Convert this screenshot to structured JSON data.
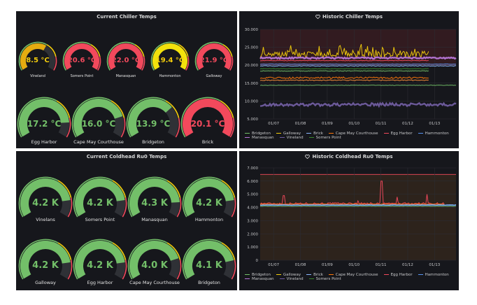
{
  "panels": {
    "current_chiller": {
      "title": "Current Chiller Temps",
      "row1": [
        {
          "value": "8.5 °C",
          "label": "Vineland",
          "fraction": 0.62,
          "color": "#e5ac10",
          "valcolor": "#f2cc0c"
        },
        {
          "value": "20.6 °C",
          "label": "Somers Point",
          "fraction": 1.0,
          "color": "#f2495c",
          "valcolor": "#f2495c"
        },
        {
          "value": "22.0 °C",
          "label": "Manasquan",
          "fraction": 1.0,
          "color": "#f2495c",
          "valcolor": "#f2495c"
        },
        {
          "value": "19.4 °C",
          "label": "Hammonton",
          "fraction": 1.0,
          "color": "#f2e20c",
          "valcolor": "#f2cc0c"
        },
        {
          "value": "21.9 °C",
          "label": "Galloway",
          "fraction": 1.0,
          "color": "#f2495c",
          "valcolor": "#f2495c"
        }
      ],
      "row2": [
        {
          "value": "17.2 °C",
          "label": "Egg Harbor",
          "fraction": 0.86,
          "color": "#73bf69",
          "valcolor": "#73bf69"
        },
        {
          "value": "16.0 °C",
          "label": "Cape May Courthouse",
          "fraction": 0.8,
          "color": "#73bf69",
          "valcolor": "#73bf69"
        },
        {
          "value": "13.9 °C",
          "label": "Bridgeton",
          "fraction": 0.7,
          "color": "#73bf69",
          "valcolor": "#73bf69"
        },
        {
          "value": "20.1 °C",
          "label": "Brick",
          "fraction": 1.0,
          "color": "#f2495c",
          "valcolor": "#f2495c"
        }
      ]
    },
    "historic_chiller": {
      "title": "Historic Chiller Temps",
      "legend": [
        {
          "name": "Bridgeton",
          "color": "#73bf69"
        },
        {
          "name": "Galloway",
          "color": "#f2cc0c"
        },
        {
          "name": "Brick",
          "color": "#8ab8ff"
        },
        {
          "name": "Cape May Courthouse",
          "color": "#ff780a"
        },
        {
          "name": "Egg Harbor",
          "color": "#f2495c"
        },
        {
          "name": "Hammonton",
          "color": "#5794f2"
        },
        {
          "name": "Manasquan",
          "color": "#b877d9"
        },
        {
          "name": "Vineland",
          "color": "#705da0"
        },
        {
          "name": "Somers Point",
          "color": "#37872d"
        }
      ]
    },
    "current_coldhead": {
      "title": "Current Coldhead Ru0 Temps",
      "row1": [
        {
          "value": "4.2 K",
          "label": "Vinelans",
          "fraction": 0.84
        },
        {
          "value": "4.2 K",
          "label": "Somers Point",
          "fraction": 0.84
        },
        {
          "value": "4.3 K",
          "label": "Manasquan",
          "fraction": 0.86
        },
        {
          "value": "4.2 K",
          "label": "Hammonton",
          "fraction": 0.84
        }
      ],
      "row2": [
        {
          "value": "4.2 K",
          "label": "Galloway",
          "fraction": 0.84
        },
        {
          "value": "4.2 K",
          "label": "Egg Harbor",
          "fraction": 0.84
        },
        {
          "value": "4.0 K",
          "label": "Cape May Courthouse",
          "fraction": 0.8
        },
        {
          "value": "4.1 K",
          "label": "Bridgeton",
          "fraction": 0.82
        }
      ],
      "color": "#73bf69"
    },
    "historic_coldhead": {
      "title": "Historic Coldhead Ru0 Temps",
      "legend": [
        {
          "name": "Bridgeton",
          "color": "#73bf69"
        },
        {
          "name": "Galloway",
          "color": "#f2cc0c"
        },
        {
          "name": "Brick",
          "color": "#8ab8ff"
        },
        {
          "name": "Cape May Courthouse",
          "color": "#ff780a"
        },
        {
          "name": "Egg Harbor",
          "color": "#f2495c"
        },
        {
          "name": "Hammonton",
          "color": "#5794f2"
        },
        {
          "name": "Manasquan",
          "color": "#b877d9"
        },
        {
          "name": "Vineland",
          "color": "#705da0"
        },
        {
          "name": "Somers Point",
          "color": "#37872d"
        }
      ]
    }
  },
  "heart_icon": "heart-icon",
  "chart_data": [
    {
      "type": "line",
      "title": "Historic Chiller Temps",
      "x": [
        "01/07",
        "01/08",
        "01/09",
        "01/10",
        "01/11",
        "01/12",
        "01/13"
      ],
      "ylim": [
        5,
        30
      ],
      "yticks": [
        "5.000",
        "10.000",
        "15.000",
        "20.000",
        "25.000",
        "30.000"
      ],
      "thresholds": [
        {
          "from": 20,
          "to": 30,
          "color": "#f2495c"
        }
      ],
      "series": [
        {
          "name": "Galloway",
          "level": 23.0,
          "noise": 1.3,
          "color": "#f2cc0c",
          "style": "spiky",
          "end": 0.86
        },
        {
          "name": "Manasquan",
          "level": 22.0,
          "noise": 0.3,
          "color": "#b877d9",
          "style": "band",
          "end": 1.0
        },
        {
          "name": "Egg Harbor",
          "level": 21.3,
          "noise": 0.3,
          "color": "#f2495c",
          "style": "smooth",
          "end": 0.86
        },
        {
          "name": "Hammonton",
          "level": 20.3,
          "noise": 0.2,
          "color": "#5794f2",
          "style": "smooth",
          "end": 1.0
        },
        {
          "name": "Brick",
          "level": 19.8,
          "noise": 0.3,
          "color": "#8ab8ff",
          "style": "smooth",
          "end": 1.0
        },
        {
          "name": "Somers Point",
          "level": 19.0,
          "noise": 0.3,
          "color": "#37872d",
          "style": "smooth",
          "end": 0.86
        },
        {
          "name": "Bridgeton",
          "level": 18.4,
          "noise": 0.3,
          "color": "#73bf69",
          "style": "smooth",
          "end": 0.86
        },
        {
          "name": "Cape May Courthouse",
          "level": 16.5,
          "noise": 0.8,
          "color": "#ff780a",
          "style": "smooth",
          "end": 0.86
        },
        {
          "name": "Cape May Courthouse",
          "level": 15.8,
          "noise": 0.4,
          "color": "#fa8f3c",
          "style": "smooth",
          "end": 0.86
        },
        {
          "name": "Bridgeton",
          "level": 14.4,
          "noise": 0.2,
          "color": "#73bf69",
          "style": "smooth",
          "end": 1.0
        },
        {
          "name": "Vineland",
          "level": 9.0,
          "noise": 0.6,
          "color": "#705da0",
          "style": "band",
          "end": 1.0
        }
      ]
    },
    {
      "type": "line",
      "title": "Historic Coldhead Ru0 Temps",
      "x": [
        "01/07",
        "01/08",
        "01/09",
        "01/10",
        "01/11",
        "01/12",
        "01/13"
      ],
      "ylim": [
        0,
        7
      ],
      "yticks": [
        "0",
        "1.000",
        "2.000",
        "3.000",
        "4.000",
        "5.000",
        "6.000",
        "7.000"
      ],
      "thresholds": [
        {
          "value": 6.5,
          "color": "#f2495c"
        }
      ],
      "series": [
        {
          "name": "Egg Harbor",
          "level": 4.3,
          "noise": 0.1,
          "color": "#f2495c",
          "style": "spikes",
          "spikes": [
            [
              0.12,
              4.9
            ],
            [
              0.5,
              4.5
            ],
            [
              0.62,
              6.0
            ],
            [
              0.7,
              4.8
            ],
            [
              0.85,
              5.0
            ]
          ],
          "end": 0.94
        },
        {
          "name": "Cape May Courthouse",
          "level": 4.25,
          "noise": 0.05,
          "color": "#ff780a",
          "style": "smooth",
          "end": 0.94
        },
        {
          "name": "Brick",
          "level": 4.2,
          "noise": 0.05,
          "color": "#8ab8ff",
          "style": "smooth",
          "end": 1.0
        },
        {
          "name": "Hammonton",
          "level": 4.15,
          "noise": 0.04,
          "color": "#5794f2",
          "style": "smooth",
          "end": 1.0
        },
        {
          "name": "Bridgeton",
          "level": 4.1,
          "noise": 0.04,
          "color": "#73bf69",
          "style": "smooth",
          "end": 1.0
        }
      ]
    }
  ]
}
